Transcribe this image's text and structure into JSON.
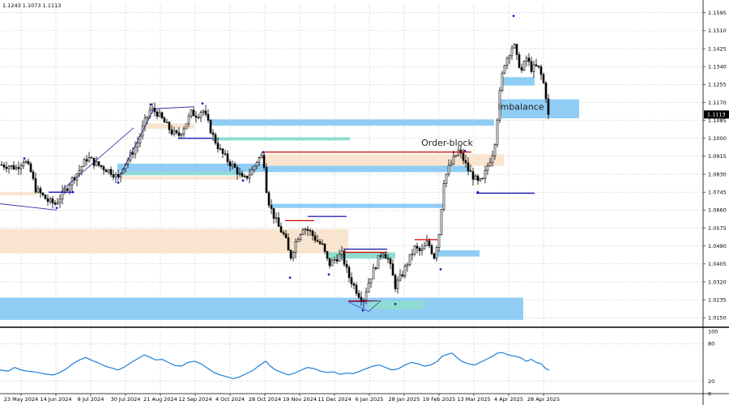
{
  "header": {
    "ohlc_text": "1.1243 1.1073 1.1113"
  },
  "chart_data": [
    {
      "type": "candlestick",
      "title": "",
      "ylim": [
        1.0105,
        1.164
      ],
      "y_ticks": [
        "1.1595",
        "1.1510",
        "1.1425",
        "1.1340",
        "1.1255",
        "1.1170",
        "1.1085",
        "1.1000",
        "1.0915",
        "1.0830",
        "1.0745",
        "1.0660",
        "1.0575",
        "1.0490",
        "1.0405",
        "1.0320",
        "1.0235",
        "1.0150"
      ],
      "y_tick_values": [
        1.1595,
        1.151,
        1.1425,
        1.134,
        1.1255,
        1.117,
        1.1085,
        1.1,
        1.0915,
        1.083,
        1.0745,
        1.066,
        1.0575,
        1.049,
        1.0405,
        1.032,
        1.0235,
        1.015
      ],
      "x_labels": [
        "23 May 2024",
        "14 Jun 2024",
        "8 Jul 2024",
        "30 Jul 2024",
        "21 Aug 2024",
        "12 Sep 2024",
        "4 Oct 2024",
        "28 Oct 2024",
        "19 Nov 2024",
        "11 Dec 2024",
        "6 Jan 2025",
        "28 Jan 2025",
        "19 Feb 2025",
        "13 Mar 2025",
        "4 Apr 2025",
        "28 Apr 2025"
      ],
      "current_price": "1.1113",
      "grid": true,
      "close_path": [
        [
          0,
          1.0875
        ],
        [
          10,
          1.087
        ],
        [
          20,
          1.086
        ],
        [
          30,
          1.09
        ],
        [
          38,
          1.084
        ],
        [
          44,
          1.076
        ],
        [
          52,
          1.073
        ],
        [
          60,
          1.07
        ],
        [
          68,
          1.069
        ],
        [
          78,
          1.074
        ],
        [
          88,
          1.08
        ],
        [
          98,
          1.085
        ],
        [
          108,
          1.091
        ],
        [
          118,
          1.088
        ],
        [
          128,
          1.086
        ],
        [
          138,
          1.084
        ],
        [
          146,
          1.081
        ],
        [
          152,
          1.087
        ],
        [
          160,
          1.091
        ],
        [
          170,
          1.098
        ],
        [
          178,
          1.107
        ],
        [
          186,
          1.114
        ],
        [
          194,
          1.112
        ],
        [
          202,
          1.108
        ],
        [
          212,
          1.103
        ],
        [
          220,
          1.101
        ],
        [
          228,
          1.106
        ],
        [
          236,
          1.112
        ],
        [
          244,
          1.111
        ],
        [
          250,
          1.114
        ],
        [
          256,
          1.108
        ],
        [
          264,
          1.1
        ],
        [
          272,
          1.094
        ],
        [
          282,
          1.089
        ],
        [
          292,
          1.085
        ],
        [
          300,
          1.08
        ],
        [
          310,
          1.084
        ],
        [
          318,
          1.09
        ],
        [
          325,
          1.092
        ],
        [
          330,
          1.072
        ],
        [
          336,
          1.065
        ],
        [
          344,
          1.058
        ],
        [
          352,
          1.053
        ],
        [
          358,
          1.043
        ],
        [
          366,
          1.052
        ],
        [
          374,
          1.058
        ],
        [
          382,
          1.056
        ],
        [
          390,
          1.052
        ],
        [
          398,
          1.049
        ],
        [
          406,
          1.04
        ],
        [
          414,
          1.043
        ],
        [
          422,
          1.045
        ],
        [
          430,
          1.035
        ],
        [
          440,
          1.028
        ],
        [
          448,
          1.023
        ],
        [
          456,
          1.033
        ],
        [
          464,
          1.04
        ],
        [
          472,
          1.047
        ],
        [
          480,
          1.042
        ],
        [
          488,
          1.03
        ],
        [
          496,
          1.035
        ],
        [
          504,
          1.042
        ],
        [
          512,
          1.048
        ],
        [
          520,
          1.046
        ],
        [
          528,
          1.051
        ],
        [
          536,
          1.044
        ],
        [
          542,
          1.055
        ],
        [
          548,
          1.08
        ],
        [
          554,
          1.086
        ],
        [
          560,
          1.09
        ],
        [
          566,
          1.094
        ],
        [
          572,
          1.09
        ],
        [
          578,
          1.085
        ],
        [
          584,
          1.082
        ],
        [
          590,
          1.079
        ],
        [
          596,
          1.08
        ],
        [
          602,
          1.087
        ],
        [
          610,
          1.095
        ],
        [
          614,
          1.11
        ],
        [
          618,
          1.125
        ],
        [
          622,
          1.135
        ],
        [
          628,
          1.14
        ],
        [
          634,
          1.145
        ],
        [
          638,
          1.138
        ],
        [
          644,
          1.132
        ],
        [
          650,
          1.138
        ],
        [
          656,
          1.133
        ],
        [
          664,
          1.134
        ],
        [
          670,
          1.128
        ],
        [
          674,
          1.12
        ],
        [
          678,
          1.1113
        ]
      ],
      "zones": [
        {
          "kind": "imbalance",
          "color": "#90cdf4",
          "x1": 0,
          "x2": 646,
          "y1": 1.0245,
          "y2": 1.014
        },
        {
          "kind": "imbalance",
          "color": "#90cdf4",
          "x1": 616,
          "x2": 715,
          "y1": 1.1185,
          "y2": 1.1095
        },
        {
          "kind": "imbalance",
          "color": "#90cdf4",
          "x1": 260,
          "x2": 610,
          "y1": 1.109,
          "y2": 1.106
        },
        {
          "kind": "imbalance",
          "color": "#90cdf4",
          "x1": 145,
          "x2": 580,
          "y1": 1.088,
          "y2": 1.084
        },
        {
          "kind": "imbalance",
          "color": "#90cdf4",
          "x1": 335,
          "x2": 548,
          "y1": 1.069,
          "y2": 1.067
        },
        {
          "kind": "imbalance",
          "color": "#90cdf4",
          "x1": 540,
          "x2": 592,
          "y1": 1.047,
          "y2": 1.044
        },
        {
          "kind": "imbalance",
          "color": "#90cdf4",
          "x1": 620,
          "x2": 660,
          "y1": 1.129,
          "y2": 1.125
        },
        {
          "kind": "order-block",
          "color": "#f9e5cf",
          "x1": 0,
          "x2": 430,
          "y1": 1.057,
          "y2": 1.0455
        },
        {
          "kind": "order-block",
          "color": "#f9e5cf",
          "x1": 326,
          "x2": 622,
          "y1": 1.0925,
          "y2": 1.087
        },
        {
          "kind": "order-block",
          "color": "#f9e5cf",
          "x1": 150,
          "x2": 300,
          "y1": 1.082,
          "y2": 1.0805
        },
        {
          "kind": "order-block",
          "color": "#f9e5cf",
          "x1": 0,
          "x2": 45,
          "y1": 1.0745,
          "y2": 1.073
        },
        {
          "kind": "order-block",
          "color": "#f9e5cf",
          "x1": 180,
          "x2": 240,
          "y1": 1.107,
          "y2": 1.1045
        },
        {
          "kind": "teal-zone",
          "color": "#8fdcd0",
          "x1": 262,
          "x2": 432,
          "y1": 1.1005,
          "y2": 1.099
        },
        {
          "kind": "teal-zone",
          "color": "#8fdcd0",
          "x1": 150,
          "x2": 300,
          "y1": 1.084,
          "y2": 1.0825
        },
        {
          "kind": "teal-zone",
          "color": "#8fdcd0",
          "x1": 405,
          "x2": 488,
          "y1": 1.046,
          "y2": 1.043
        },
        {
          "kind": "teal-zone",
          "color": "#8fdcd0",
          "x1": 455,
          "x2": 523,
          "y1": 1.023,
          "y2": 1.019
        }
      ],
      "levels": [
        {
          "color": "#d00000",
          "x1": 326,
          "x2": 582,
          "y": 1.0935
        },
        {
          "color": "#d00000",
          "x1": 352,
          "x2": 388,
          "y": 1.061
        },
        {
          "color": "#d00000",
          "x1": 424,
          "x2": 478,
          "y": 1.046
        },
        {
          "color": "#d00000",
          "x1": 512,
          "x2": 540,
          "y": 1.052
        },
        {
          "color": "#d00000",
          "x1": 430,
          "x2": 466,
          "y": 1.023
        },
        {
          "color": "#0000aa",
          "x1": 588,
          "x2": 660,
          "y": 1.074
        },
        {
          "color": "#0000aa",
          "x1": 380,
          "x2": 428,
          "y": 1.063
        },
        {
          "color": "#0000aa",
          "x1": 220,
          "x2": 262,
          "y": 1.1
        },
        {
          "color": "#0000aa",
          "x1": 60,
          "x2": 90,
          "y": 1.0745
        },
        {
          "color": "#0000aa",
          "x1": 424,
          "x2": 478,
          "y": 1.0475
        }
      ],
      "trendlines": [
        {
          "x1": 0,
          "y1": 1.069,
          "x2": 70,
          "y2": 1.066
        },
        {
          "x1": 78,
          "y1": 1.076,
          "x2": 165,
          "y2": 1.105
        },
        {
          "x1": 145,
          "y1": 1.08,
          "x2": 190,
          "y2": 1.114
        },
        {
          "x1": 190,
          "y1": 1.114,
          "x2": 240,
          "y2": 1.115
        }
      ],
      "annotations": [
        {
          "text": "Order-block",
          "x": 552,
          "y": 1.0965
        },
        {
          "text": "Imbalance",
          "x": 643,
          "y": 1.1135
        }
      ]
    },
    {
      "type": "line",
      "title": "",
      "ylim": [
        0,
        100
      ],
      "y_ticks": [
        "100",
        "80",
        "20",
        "0"
      ],
      "y_tick_values": [
        100,
        80,
        20,
        0
      ],
      "series": [
        {
          "color": "#1e7fd6",
          "points": [
            [
              0,
              38
            ],
            [
              10,
              36
            ],
            [
              18,
              42
            ],
            [
              26,
              38
            ],
            [
              34,
              36
            ],
            [
              42,
              35
            ],
            [
              50,
              33
            ],
            [
              58,
              31
            ],
            [
              66,
              30
            ],
            [
              74,
              34
            ],
            [
              82,
              40
            ],
            [
              90,
              48
            ],
            [
              98,
              54
            ],
            [
              106,
              58
            ],
            [
              114,
              53
            ],
            [
              122,
              49
            ],
            [
              130,
              44
            ],
            [
              138,
              41
            ],
            [
              146,
              38
            ],
            [
              154,
              43
            ],
            [
              162,
              50
            ],
            [
              170,
              56
            ],
            [
              178,
              62
            ],
            [
              184,
              59
            ],
            [
              192,
              54
            ],
            [
              200,
              55
            ],
            [
              208,
              50
            ],
            [
              216,
              45
            ],
            [
              224,
              44
            ],
            [
              232,
              50
            ],
            [
              240,
              52
            ],
            [
              248,
              48
            ],
            [
              256,
              41
            ],
            [
              264,
              34
            ],
            [
              272,
              30
            ],
            [
              280,
              27
            ],
            [
              288,
              24
            ],
            [
              296,
              27
            ],
            [
              304,
              32
            ],
            [
              312,
              37
            ],
            [
              320,
              45
            ],
            [
              328,
              52
            ],
            [
              334,
              44
            ],
            [
              340,
              38
            ],
            [
              348,
              34
            ],
            [
              356,
              30
            ],
            [
              364,
              33
            ],
            [
              372,
              38
            ],
            [
              380,
              42
            ],
            [
              388,
              40
            ],
            [
              396,
              36
            ],
            [
              404,
              34
            ],
            [
              412,
              35
            ],
            [
              420,
              31
            ],
            [
              428,
              33
            ],
            [
              436,
              32
            ],
            [
              444,
              36
            ],
            [
              452,
              40
            ],
            [
              460,
              44
            ],
            [
              468,
              46
            ],
            [
              476,
              42
            ],
            [
              484,
              38
            ],
            [
              492,
              40
            ],
            [
              500,
              46
            ],
            [
              508,
              50
            ],
            [
              516,
              48
            ],
            [
              524,
              44
            ],
            [
              532,
              46
            ],
            [
              540,
              52
            ],
            [
              546,
              60
            ],
            [
              552,
              63
            ],
            [
              558,
              65
            ],
            [
              564,
              58
            ],
            [
              570,
              52
            ],
            [
              578,
              48
            ],
            [
              586,
              46
            ],
            [
              594,
              51
            ],
            [
              602,
              56
            ],
            [
              608,
              60
            ],
            [
              614,
              65
            ],
            [
              620,
              66
            ],
            [
              628,
              62
            ],
            [
              636,
              60
            ],
            [
              642,
              58
            ],
            [
              650,
              52
            ],
            [
              656,
              55
            ],
            [
              662,
              50
            ],
            [
              668,
              48
            ],
            [
              674,
              40
            ],
            [
              678,
              38
            ]
          ]
        }
      ]
    }
  ]
}
